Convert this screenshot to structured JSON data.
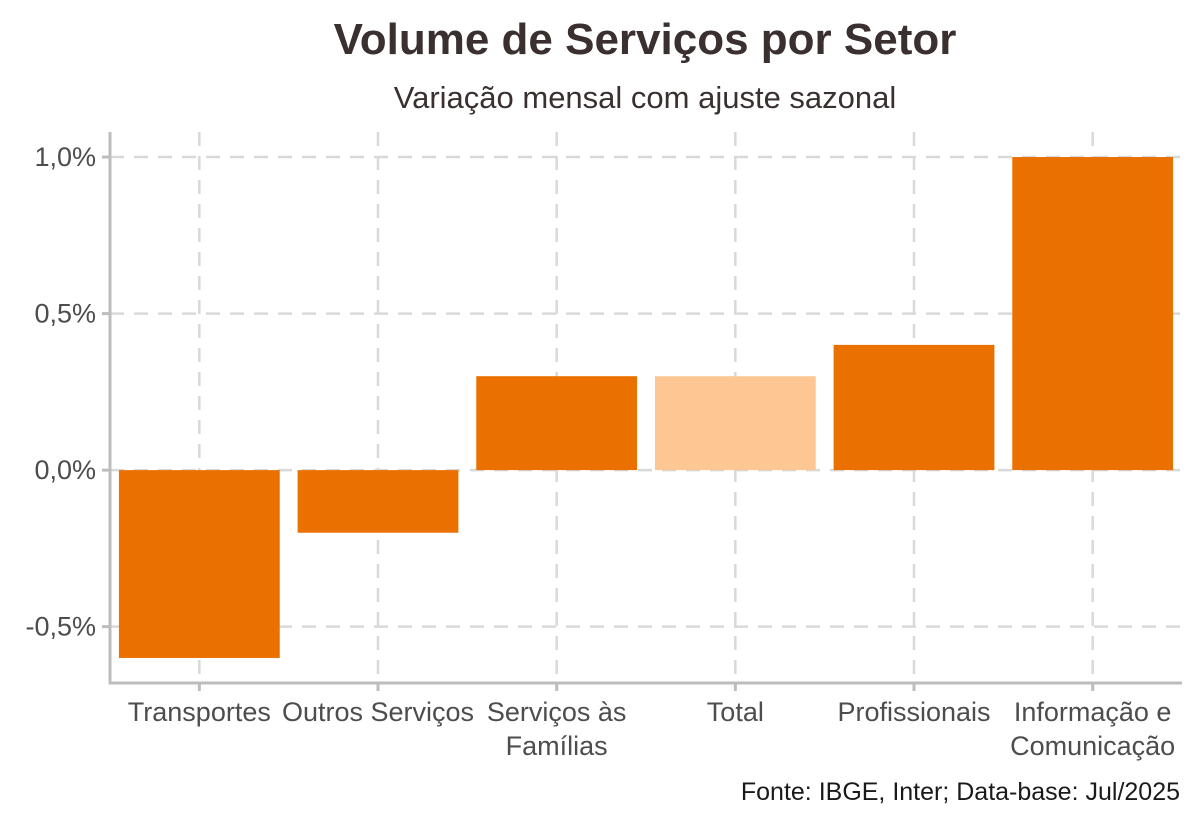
{
  "chart_data": {
    "type": "bar",
    "title": "Volume de Serviços por Setor",
    "subtitle": "Variação mensal com ajuste sazonal",
    "caption": "Fonte: IBGE, Inter; Data-base: Jul/2025",
    "categories": [
      [
        "Transportes"
      ],
      [
        "Outros Serviços"
      ],
      [
        "Serviços às",
        "Famílias"
      ],
      [
        "Total"
      ],
      [
        "Profissionais"
      ],
      [
        "Informação e",
        "Comunicação"
      ]
    ],
    "values": [
      -0.6,
      -0.2,
      0.3,
      0.3,
      0.4,
      1.0
    ],
    "bar_colors": [
      "#ea7000",
      "#ea7000",
      "#ea7000",
      "#fdc793",
      "#ea7000",
      "#ea7000"
    ],
    "ylim": [
      -0.68,
      1.08
    ],
    "yticks": [
      -0.5,
      0.0,
      0.5,
      1.0
    ],
    "ytick_labels": [
      "-0,5%",
      "0,0%",
      "0,5%",
      "1,0%"
    ],
    "grid": true,
    "legend": "none"
  }
}
